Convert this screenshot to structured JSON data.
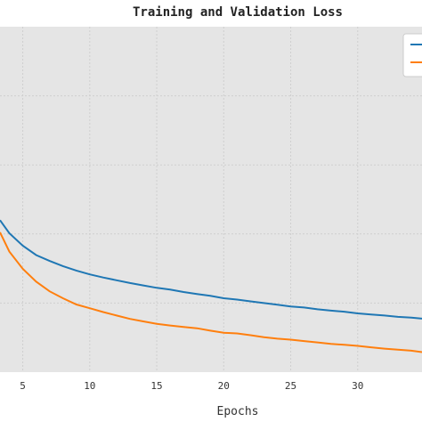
{
  "chart_data": {
    "type": "line",
    "title": "Training and Validation Loss",
    "xlabel": "Epochs",
    "ylabel": "",
    "xlim": [
      3.3,
      34.8
    ],
    "ylim": [
      0,
      1
    ],
    "x_ticks": [
      5,
      10,
      15,
      20,
      25,
      30
    ],
    "grid": true,
    "legend": {
      "placement": "top-right",
      "entries": [
        "",
        ""
      ]
    },
    "series": [
      {
        "color": "#1f77b4",
        "x": [
          3.3,
          4,
          5,
          6,
          7,
          8,
          9,
          10,
          11,
          12,
          13,
          14,
          15,
          16,
          17,
          18,
          19,
          20,
          21,
          22,
          23,
          24,
          25,
          26,
          27,
          28,
          29,
          30,
          31,
          32,
          33,
          34,
          34.8
        ],
        "y": [
          0.44,
          0.402,
          0.366,
          0.339,
          0.322,
          0.307,
          0.294,
          0.283,
          0.274,
          0.266,
          0.258,
          0.251,
          0.244,
          0.239,
          0.232,
          0.226,
          0.221,
          0.214,
          0.21,
          0.205,
          0.2,
          0.195,
          0.19,
          0.187,
          0.182,
          0.178,
          0.175,
          0.17,
          0.167,
          0.164,
          0.16,
          0.158,
          0.155
        ]
      },
      {
        "color": "#ff7f0e",
        "x": [
          3.3,
          4,
          5,
          6,
          7,
          8,
          9,
          10,
          11,
          12,
          13,
          14,
          15,
          16,
          17,
          18,
          19,
          20,
          21,
          22,
          23,
          24,
          25,
          26,
          27,
          28,
          29,
          30,
          31,
          32,
          33,
          34,
          34.8
        ],
        "y": [
          0.405,
          0.349,
          0.299,
          0.262,
          0.234,
          0.214,
          0.196,
          0.185,
          0.174,
          0.164,
          0.154,
          0.147,
          0.14,
          0.135,
          0.131,
          0.127,
          0.12,
          0.114,
          0.112,
          0.107,
          0.101,
          0.097,
          0.094,
          0.09,
          0.086,
          0.082,
          0.079,
          0.076,
          0.072,
          0.068,
          0.065,
          0.062,
          0.058
        ]
      }
    ]
  }
}
